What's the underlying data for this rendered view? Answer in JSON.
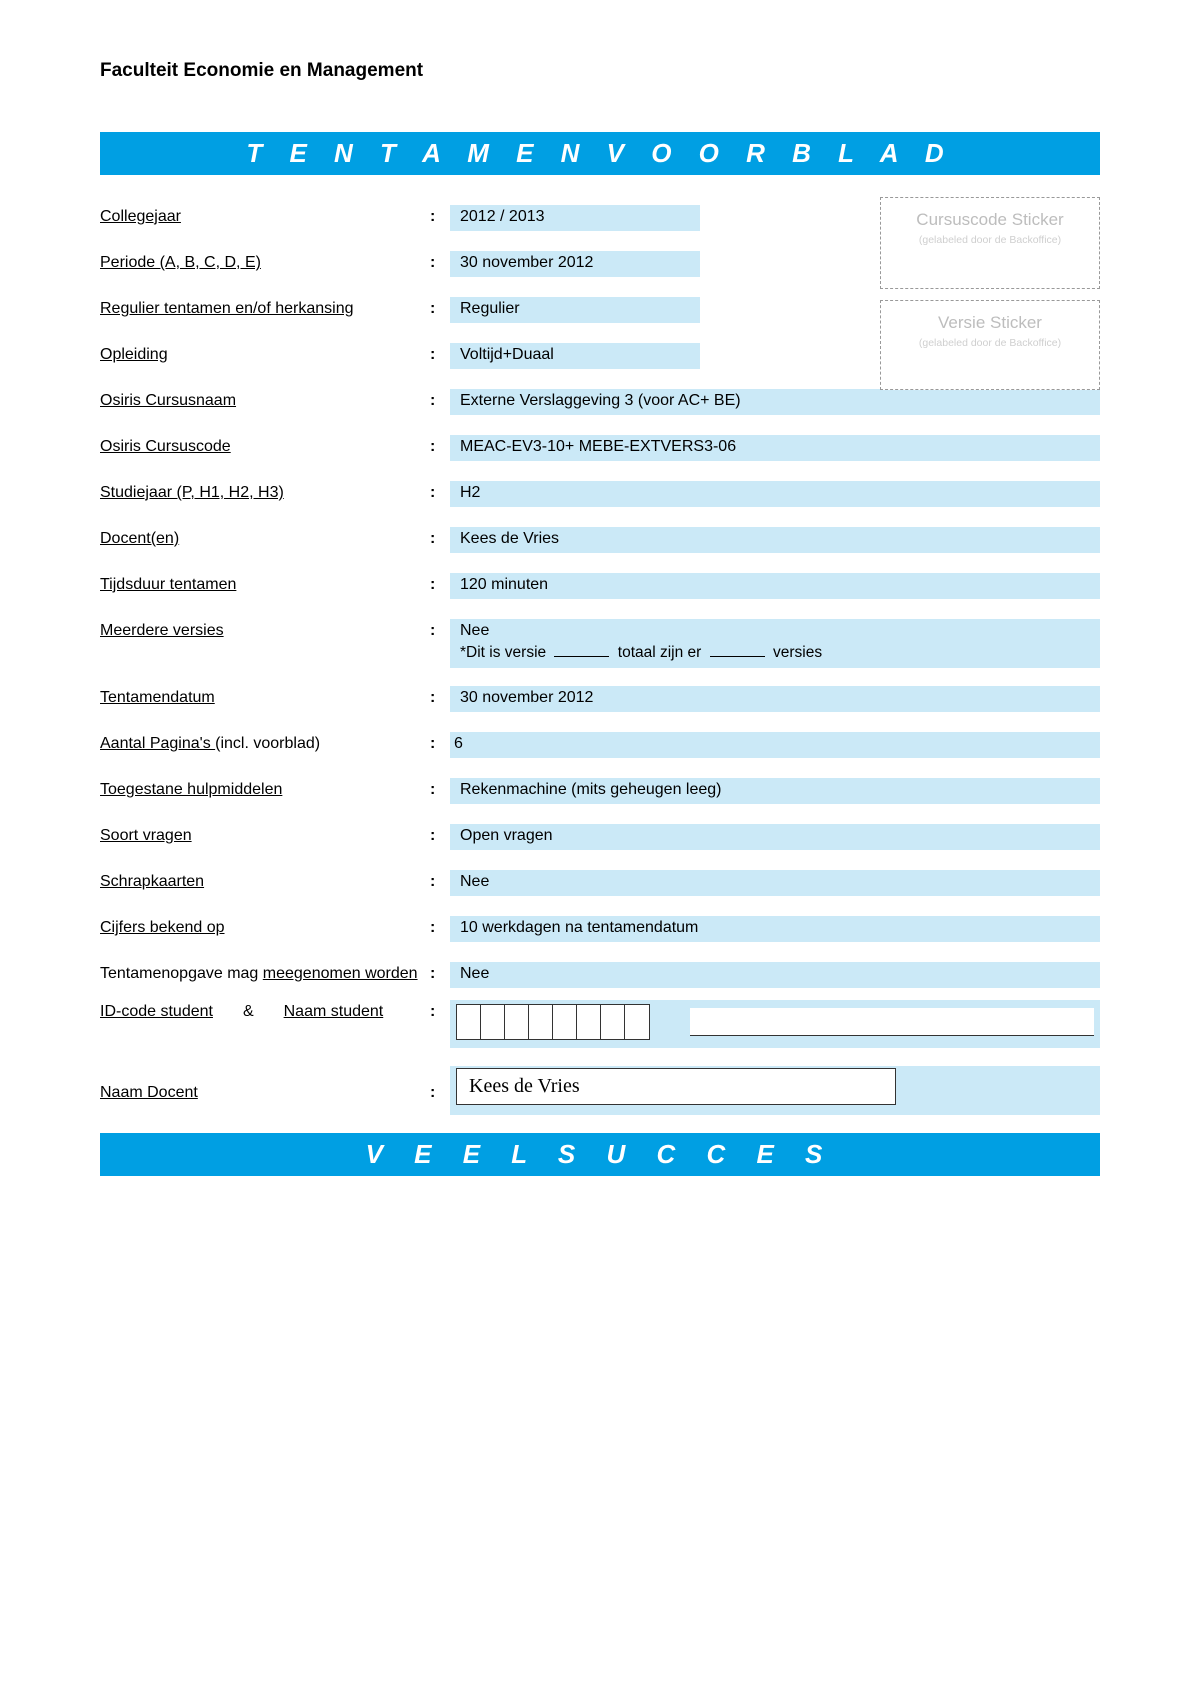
{
  "colors": {
    "banner_bg": "#009fe3",
    "banner_text": "#ffffff",
    "value_bg": "#cbe9f7",
    "sticker_border": "#999999",
    "sticker_text": "#bdbdbd",
    "page_bg": "#ffffff"
  },
  "header": {
    "faculty": "Faculteit Economie en Management",
    "banner_title": "T E N T A M E N V O O R B L A D",
    "banner_footer": "V E E L   S U C C E S"
  },
  "stickers": {
    "code_title": "Cursuscode Sticker",
    "code_sub": "(gelabeled door de Backoffice)",
    "version_title": "Versie Sticker",
    "version_sub": "(gelabeled door de Backoffice)"
  },
  "labels": {
    "collegejaar": "Collegejaar",
    "periode": "Periode (A, B, C, D, E)",
    "regulier": "Regulier tentamen en/of herkansing",
    "opleiding": "Opleiding",
    "osiris_naam": "Osiris Cursusnaam",
    "osiris_code": "Osiris Cursuscode",
    "studiejaar": "Studiejaar (P, H1, H2, H3)",
    "docenten": "Docent(en)",
    "tijdsduur": "Tijdsduur tentamen",
    "meerdere": "Meerdere versies",
    "meerdere_sub_prefix": "*Dit is versie",
    "meerdere_sub_mid": "totaal zijn er",
    "meerdere_sub_suffix": "versies",
    "tentamendatum": "Tentamendatum",
    "paginas_prefix": "Aantal Pagina's ",
    "paginas_suffix": "(incl. voorblad)",
    "hulpmiddelen": "Toegestane hulpmiddelen",
    "soort_vragen": "Soort vragen",
    "schrapkaarten": "Schrapkaarten",
    "cijfers": "Cijfers bekend op",
    "meegenomen_prefix": "Tentamenopgave mag ",
    "meegenomen_under": "meegenomen worden",
    "idcode": "ID-code student",
    "amp": "&",
    "naam_student": "Naam student",
    "naam_docent": "Naam Docent"
  },
  "values": {
    "collegejaar": "2012 / 2013",
    "periode": "30 november 2012",
    "regulier": "Regulier",
    "opleiding": "Voltijd+Duaal",
    "osiris_naam": "Externe Verslaggeving 3  (voor AC+ BE)",
    "osiris_code": "MEAC-EV3-10+ MEBE-EXTVERS3-06",
    "studiejaar": "H2",
    "docenten": "Kees de Vries",
    "tijdsduur": "120 minuten",
    "meerdere": "Nee",
    "tentamendatum": "30 november 2012",
    "paginas": "6",
    "hulpmiddelen": "Rekenmachine (mits geheugen leeg)",
    "soort_vragen": "Open vragen",
    "schrapkaarten": "Nee",
    "cijfers": "10 werkdagen na tentamendatum",
    "meegenomen": "Nee",
    "docent_name": "Kees de Vries"
  },
  "id_box_count": 8
}
